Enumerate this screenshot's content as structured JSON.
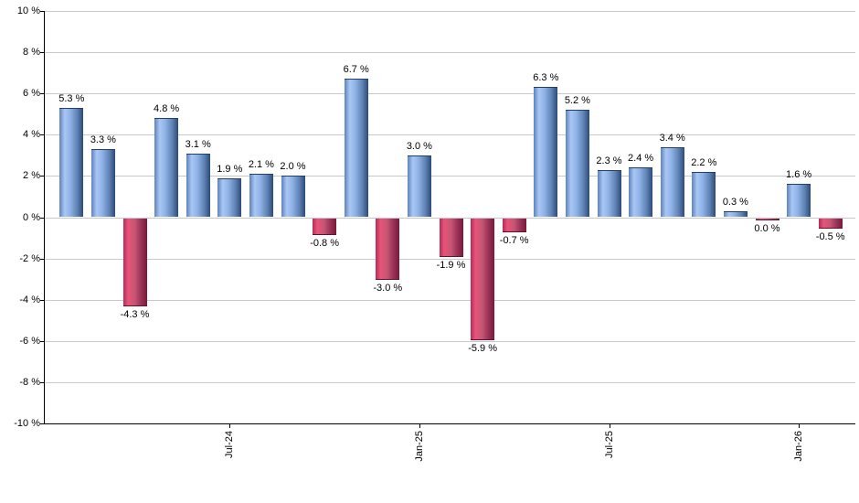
{
  "chart_data": {
    "type": "bar",
    "title": "",
    "xlabel": "",
    "ylabel": "",
    "ylim": [
      -10,
      10
    ],
    "y_tick_step": 2,
    "grid": true,
    "y_tick_labels": [
      "10 %",
      "8 %",
      "6 %",
      "4 %",
      "2 %",
      "0 %",
      "-2 %",
      "-4 %",
      "-6 %",
      "-8 %",
      "-10 %"
    ],
    "bars": [
      {
        "value": 5.3,
        "label": "5.3 %",
        "color": "positive"
      },
      {
        "value": 3.3,
        "label": "3.3 %",
        "color": "positive"
      },
      {
        "value": -4.3,
        "label": "-4.3 %",
        "color": "negative"
      },
      {
        "value": 4.8,
        "label": "4.8 %",
        "color": "positive"
      },
      {
        "value": 3.1,
        "label": "3.1 %",
        "color": "positive"
      },
      {
        "value": 1.9,
        "label": "1.9 %",
        "color": "positive"
      },
      {
        "value": 2.1,
        "label": "2.1 %",
        "color": "positive"
      },
      {
        "value": 2.0,
        "label": "2.0 %",
        "color": "positive"
      },
      {
        "value": -0.8,
        "label": "-0.8 %",
        "color": "negative"
      },
      {
        "value": 6.7,
        "label": "6.7 %",
        "color": "positive"
      },
      {
        "value": -3.0,
        "label": "-3.0 %",
        "color": "negative"
      },
      {
        "value": 3.0,
        "label": "3.0 %",
        "color": "positive"
      },
      {
        "value": -1.9,
        "label": "-1.9 %",
        "color": "negative"
      },
      {
        "value": -5.9,
        "label": "-5.9 %",
        "color": "negative"
      },
      {
        "value": -0.7,
        "label": "-0.7 %",
        "color": "negative"
      },
      {
        "value": 6.3,
        "label": "6.3 %",
        "color": "positive"
      },
      {
        "value": 5.2,
        "label": "5.2 %",
        "color": "positive"
      },
      {
        "value": 2.3,
        "label": "2.3 %",
        "color": "positive"
      },
      {
        "value": 2.4,
        "label": "2.4 %",
        "color": "positive"
      },
      {
        "value": 3.4,
        "label": "3.4 %",
        "color": "positive"
      },
      {
        "value": 2.2,
        "label": "2.2 %",
        "color": "positive"
      },
      {
        "value": 0.3,
        "label": "0.3 %",
        "color": "positive"
      },
      {
        "value": 0.0,
        "label": "0.0 %",
        "color": "negative"
      },
      {
        "value": 1.6,
        "label": "1.6 %",
        "color": "positive"
      },
      {
        "value": -0.5,
        "label": "-0.5 %",
        "color": "negative"
      }
    ],
    "x_ticks": [
      {
        "bar_index": 5,
        "label": "Jul-24"
      },
      {
        "bar_index": 11,
        "label": "Jan-25"
      },
      {
        "bar_index": 17,
        "label": "Jul-25"
      },
      {
        "bar_index": 23,
        "label": "Jan-26"
      }
    ],
    "colors": {
      "positive_bar_highlight": "#a9c7f3",
      "positive_bar_dark": "#2b4a7a",
      "negative_bar_highlight": "#ea537a",
      "negative_bar_dark": "#7a1838",
      "gridline": "#c8c8c8",
      "axis": "#000000",
      "text": "#000000",
      "background": "#ffffff"
    }
  }
}
